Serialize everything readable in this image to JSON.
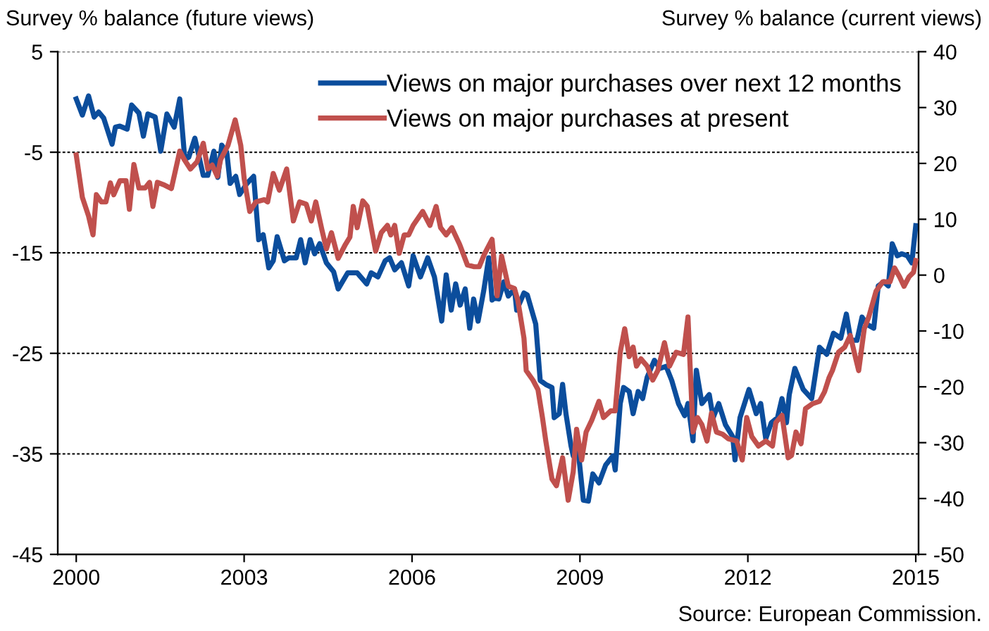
{
  "chart_data": {
    "type": "line",
    "ylabel": "Survey % balance (future views)",
    "y2label": "Survey % balance (current views)",
    "annotations": [
      "Source: European Commission."
    ],
    "xlim": [
      1999.67,
      2015.05
    ],
    "xticks": [
      2000,
      2003,
      2006,
      2009,
      2012,
      2015
    ],
    "ylim": [
      -45,
      5
    ],
    "yticks": [
      5,
      -5,
      -15,
      -25,
      -35,
      -45
    ],
    "y2lim": [
      -50,
      40
    ],
    "y2ticks": [
      40,
      30,
      20,
      10,
      0,
      -10,
      -20,
      -30,
      -40,
      -50
    ],
    "grid": "y",
    "legend": "top right",
    "series": [
      {
        "name": "Views on major purchases over next 12 months",
        "color": "#0b4d9c",
        "axis": "y",
        "x": [
          2000.0,
          2000.11,
          2000.22,
          2000.32,
          2000.4,
          2000.49,
          2000.64,
          2000.7,
          2000.78,
          2000.91,
          2000.99,
          2001.12,
          2001.2,
          2001.28,
          2001.41,
          2001.51,
          2001.62,
          2001.75,
          2001.85,
          2001.94,
          2002.01,
          2002.12,
          2002.27,
          2002.35,
          2002.46,
          2002.53,
          2002.6,
          2002.69,
          2002.75,
          2002.85,
          2002.92,
          2003.05,
          2003.17,
          2003.26,
          2003.34,
          2003.44,
          2003.52,
          2003.59,
          2003.72,
          2003.8,
          2003.93,
          2004.01,
          2004.09,
          2004.18,
          2004.26,
          2004.35,
          2004.47,
          2004.6,
          2004.68,
          2004.85,
          2005.02,
          2005.19,
          2005.27,
          2005.39,
          2005.52,
          2005.6,
          2005.69,
          2005.81,
          2005.94,
          2006.02,
          2006.15,
          2006.28,
          2006.4,
          2006.53,
          2006.61,
          2006.7,
          2006.78,
          2006.86,
          2006.95,
          2007.03,
          2007.1,
          2007.18,
          2007.28,
          2007.37,
          2007.43,
          2007.47,
          2007.55,
          2007.64,
          2007.72,
          2007.83,
          2007.87,
          2008.0,
          2008.06,
          2008.21,
          2008.29,
          2008.39,
          2008.5,
          2008.54,
          2008.63,
          2008.69,
          2008.75,
          2008.84,
          2008.88,
          2008.96,
          2009.06,
          2009.15,
          2009.23,
          2009.34,
          2009.46,
          2009.59,
          2009.63,
          2009.72,
          2009.78,
          2009.88,
          2009.95,
          2010.04,
          2010.12,
          2010.2,
          2010.33,
          2010.43,
          2010.54,
          2010.64,
          2010.76,
          2010.87,
          2010.93,
          2011.02,
          2011.08,
          2011.18,
          2011.31,
          2011.38,
          2011.48,
          2011.6,
          2011.73,
          2011.77,
          2011.86,
          2011.94,
          2012.02,
          2012.15,
          2012.23,
          2012.32,
          2012.42,
          2012.53,
          2012.61,
          2012.69,
          2012.74,
          2012.84,
          2012.99,
          2013.14,
          2013.28,
          2013.41,
          2013.53,
          2013.66,
          2013.76,
          2013.84,
          2013.95,
          2014.04,
          2014.12,
          2014.25,
          2014.33,
          2014.43,
          2014.51,
          2014.58,
          2014.67,
          2014.75,
          2014.85,
          2014.93,
          2015.0
        ],
        "values": [
          0.3,
          -1.3,
          0.6,
          -1.5,
          -1.0,
          -1.6,
          -4.2,
          -2.5,
          -2.4,
          -2.7,
          -0.3,
          -1.1,
          -3.4,
          -1.2,
          -1.5,
          -4.9,
          -1.2,
          -2.5,
          0.3,
          -5.7,
          -5.5,
          -3.6,
          -7.3,
          -7.3,
          -4.9,
          -7.5,
          -4.3,
          -5.0,
          -8.1,
          -7.4,
          -9.2,
          -8.1,
          -7.4,
          -13.7,
          -13.2,
          -16.5,
          -15.8,
          -13.4,
          -15.8,
          -15.5,
          -15.5,
          -13.7,
          -16.0,
          -13.7,
          -15.1,
          -14.1,
          -16.0,
          -16.9,
          -18.6,
          -17.0,
          -17.0,
          -18.1,
          -17.0,
          -17.4,
          -15.8,
          -15.5,
          -16.7,
          -16.0,
          -18.3,
          -15.3,
          -17.4,
          -15.5,
          -17.4,
          -21.8,
          -17.2,
          -20.7,
          -18.1,
          -20.2,
          -18.6,
          -22.5,
          -19.6,
          -21.8,
          -18.8,
          -15.5,
          -19.7,
          -19.5,
          -19.6,
          -17.9,
          -19.3,
          -18.6,
          -20.7,
          -19.0,
          -19.2,
          -22.1,
          -27.7,
          -28.1,
          -28.4,
          -31.4,
          -31.0,
          -28.1,
          -31.0,
          -34.2,
          -35.2,
          -34.2,
          -39.6,
          -39.7,
          -37.0,
          -37.9,
          -36.1,
          -35.2,
          -36.6,
          -30.0,
          -28.4,
          -28.8,
          -31.0,
          -28.8,
          -29.5,
          -27.4,
          -25.7,
          -26.5,
          -26.3,
          -27.7,
          -30.0,
          -31.2,
          -30.0,
          -33.7,
          -26.7,
          -30.0,
          -29.1,
          -31.4,
          -30.0,
          -32.1,
          -33.3,
          -35.6,
          -31.4,
          -30.0,
          -28.6,
          -31.0,
          -30.0,
          -33.5,
          -31.9,
          -31.4,
          -29.5,
          -31.9,
          -29.1,
          -26.5,
          -28.6,
          -29.5,
          -24.4,
          -25.1,
          -23.0,
          -23.5,
          -21.1,
          -23.7,
          -23.7,
          -21.4,
          -22.1,
          -22.5,
          -18.3,
          -17.9,
          -18.3,
          -14.1,
          -15.3,
          -15.1,
          -15.3,
          -16.0,
          -12.3
        ]
      },
      {
        "name": "Views on major purchases at present",
        "color": "#c0504d",
        "axis": "y2",
        "x": [
          2000.0,
          2000.11,
          2000.22,
          2000.3,
          2000.36,
          2000.45,
          2000.53,
          2000.61,
          2000.67,
          2000.78,
          2000.89,
          2000.95,
          2001.03,
          2001.12,
          2001.23,
          2001.31,
          2001.37,
          2001.45,
          2001.58,
          2001.7,
          2001.85,
          2001.93,
          2002.04,
          2002.16,
          2002.27,
          2002.35,
          2002.43,
          2002.52,
          2002.58,
          2002.71,
          2002.84,
          2002.94,
          2003.0,
          2003.1,
          2003.21,
          2003.36,
          2003.42,
          2003.52,
          2003.63,
          2003.76,
          2003.88,
          2003.99,
          2004.11,
          2004.2,
          2004.28,
          2004.39,
          2004.47,
          2004.56,
          2004.68,
          2004.81,
          2004.89,
          2004.95,
          2005.02,
          2005.12,
          2005.2,
          2005.35,
          2005.45,
          2005.56,
          2005.62,
          2005.69,
          2005.77,
          2005.86,
          2005.94,
          2006.02,
          2006.19,
          2006.32,
          2006.43,
          2006.51,
          2006.61,
          2006.71,
          2006.85,
          2006.99,
          2007.11,
          2007.2,
          2007.3,
          2007.43,
          2007.52,
          2007.6,
          2007.72,
          2007.83,
          2007.89,
          2008.0,
          2008.04,
          2008.16,
          2008.25,
          2008.33,
          2008.39,
          2008.5,
          2008.58,
          2008.69,
          2008.79,
          2008.88,
          2008.94,
          2009.03,
          2009.11,
          2009.21,
          2009.34,
          2009.42,
          2009.55,
          2009.63,
          2009.72,
          2009.8,
          2009.88,
          2009.95,
          2010.01,
          2010.09,
          2010.2,
          2010.3,
          2010.39,
          2010.51,
          2010.6,
          2010.72,
          2010.85,
          2010.93,
          2011.02,
          2011.1,
          2011.18,
          2011.27,
          2011.35,
          2011.44,
          2011.55,
          2011.65,
          2011.8,
          2011.9,
          2011.98,
          2012.07,
          2012.19,
          2012.32,
          2012.44,
          2012.5,
          2012.61,
          2012.72,
          2012.78,
          2012.86,
          2012.95,
          2013.03,
          2013.16,
          2013.28,
          2013.37,
          2013.45,
          2013.51,
          2013.62,
          2013.73,
          2013.83,
          2013.91,
          2013.98,
          2014.08,
          2014.16,
          2014.29,
          2014.41,
          2014.54,
          2014.62,
          2014.71,
          2014.79,
          2014.88,
          2014.96,
          2015.0
        ],
        "values": [
          21.5,
          13.9,
          10.6,
          7.2,
          14.4,
          13.1,
          13.1,
          16.5,
          14.4,
          16.9,
          16.9,
          11.8,
          19.8,
          15.6,
          15.6,
          16.6,
          12.3,
          16.6,
          16.1,
          15.5,
          22.2,
          20.7,
          19.0,
          20.3,
          23.6,
          19.0,
          19.7,
          17.7,
          20.7,
          23.2,
          27.8,
          23.2,
          17.3,
          11.4,
          13.1,
          13.5,
          13.1,
          18.2,
          15.2,
          19.0,
          9.7,
          13.1,
          12.7,
          9.7,
          13.1,
          8.1,
          4.7,
          7.6,
          3.0,
          5.5,
          6.8,
          12.3,
          8.5,
          13.3,
          12.3,
          4.3,
          7.6,
          8.9,
          7.2,
          8.9,
          3.9,
          7.2,
          7.2,
          8.9,
          11.4,
          8.9,
          12.3,
          8.5,
          7.2,
          8.5,
          5.5,
          1.8,
          1.5,
          1.5,
          3.9,
          6.4,
          -3.7,
          3.4,
          -2.0,
          -2.4,
          -4.5,
          -11.3,
          -17.1,
          -18.8,
          -20.5,
          -25.5,
          -29.7,
          -36.5,
          -37.7,
          -32.7,
          -40.3,
          -35.2,
          -27.6,
          -33.1,
          -28.1,
          -26.0,
          -22.6,
          -25.5,
          -24.3,
          -24.3,
          -13.8,
          -9.6,
          -14.6,
          -12.9,
          -16.3,
          -15.0,
          -16.3,
          -18.8,
          -17.1,
          -12.1,
          -16.3,
          -13.8,
          -14.2,
          -7.5,
          -28.1,
          -25.5,
          -26.8,
          -29.7,
          -24.7,
          -28.1,
          -28.5,
          -29.3,
          -29.7,
          -33.1,
          -25.5,
          -28.9,
          -30.6,
          -29.7,
          -30.6,
          -26.4,
          -25.1,
          -32.7,
          -32.3,
          -28.1,
          -30.2,
          -23.9,
          -23.0,
          -22.6,
          -20.9,
          -18.4,
          -17.1,
          -13.8,
          -12.9,
          -10.8,
          -14.2,
          -17.1,
          -9.6,
          -7.5,
          -2.9,
          -1.2,
          -1.2,
          1.3,
          -0.3,
          -2.0,
          -0.3,
          0.5,
          2.6
        ]
      }
    ]
  }
}
